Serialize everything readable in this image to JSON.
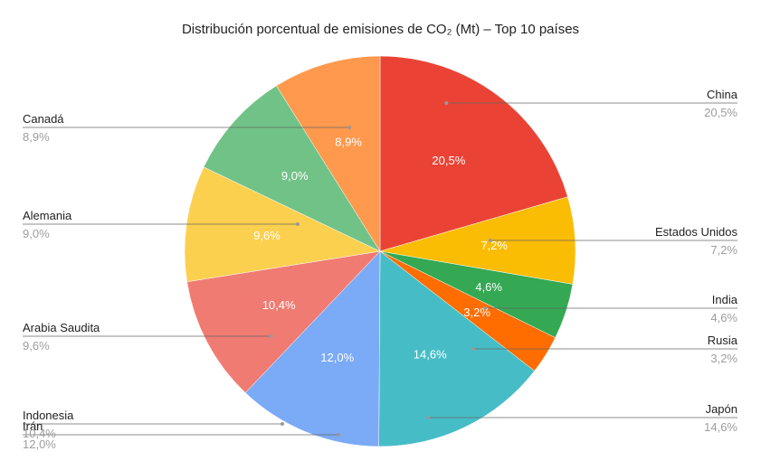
{
  "chart_data": {
    "type": "pie",
    "title": "Distribución porcentual de emisiones de CO₂ (Mt) – Top 10 países",
    "slices": [
      {
        "name": "China",
        "value": 20.5,
        "label": "20,5%",
        "color": "#ea4335"
      },
      {
        "name": "Estados Unidos",
        "value": 7.2,
        "label": "7,2%",
        "color": "#fbbc04"
      },
      {
        "name": "India",
        "value": 4.6,
        "label": "4,6%",
        "color": "#34a853"
      },
      {
        "name": "Rusia",
        "value": 3.2,
        "label": "3,2%",
        "color": "#ff6d01"
      },
      {
        "name": "Japón",
        "value": 14.6,
        "label": "14,6%",
        "color": "#46bdc6"
      },
      {
        "name": "Irán",
        "value": 12.0,
        "label": "12,0%",
        "color": "#7baaf7"
      },
      {
        "name": "Indonesia",
        "value": 10.4,
        "label": "10,4%",
        "color": "#f07b72"
      },
      {
        "name": "Arabia Saudita",
        "value": 9.6,
        "label": "9,6%",
        "color": "#fcd04f"
      },
      {
        "name": "Alemania",
        "value": 9.0,
        "label": "9,0%",
        "color": "#71c287"
      },
      {
        "name": "Canadá",
        "value": 8.9,
        "label": "8,9%",
        "color": "#ff994d"
      }
    ],
    "legend": "none"
  }
}
